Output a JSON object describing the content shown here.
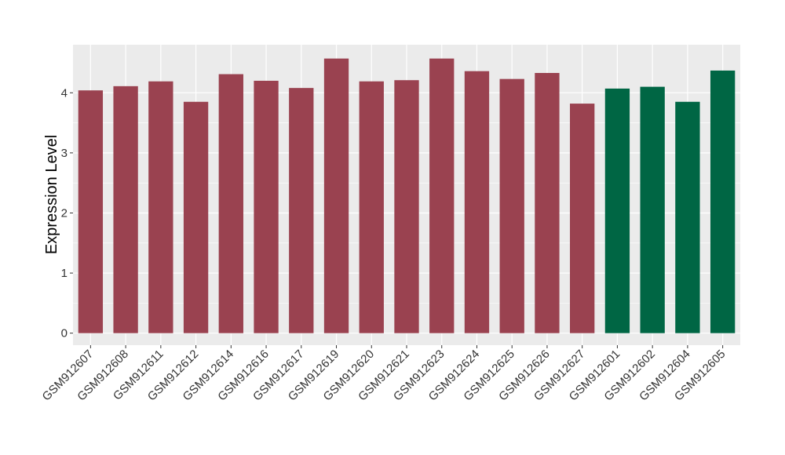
{
  "chart_data": {
    "type": "bar",
    "title": "",
    "xlabel": "",
    "ylabel": "Expression Level",
    "ylim": [
      -0.2,
      4.8
    ],
    "yticks": [
      0,
      1,
      2,
      3,
      4
    ],
    "grid": true,
    "background": "#ebebeb",
    "categories": [
      "GSM912607",
      "GSM912608",
      "GSM912611",
      "GSM912612",
      "GSM912614",
      "GSM912616",
      "GSM912617",
      "GSM912619",
      "GSM912620",
      "GSM912621",
      "GSM912623",
      "GSM912624",
      "GSM912625",
      "GSM912626",
      "GSM912627",
      "GSM912601",
      "GSM912602",
      "GSM912604",
      "GSM912605"
    ],
    "values": [
      4.04,
      4.11,
      4.19,
      3.85,
      4.31,
      4.2,
      4.08,
      4.57,
      4.19,
      4.21,
      4.57,
      4.36,
      4.23,
      4.33,
      3.82,
      4.07,
      4.1,
      3.85,
      4.37
    ],
    "groups": [
      0,
      0,
      0,
      0,
      0,
      0,
      0,
      0,
      0,
      0,
      0,
      0,
      0,
      0,
      0,
      1,
      1,
      1,
      1
    ],
    "group_colors": [
      "#9a4250",
      "#006644"
    ]
  }
}
